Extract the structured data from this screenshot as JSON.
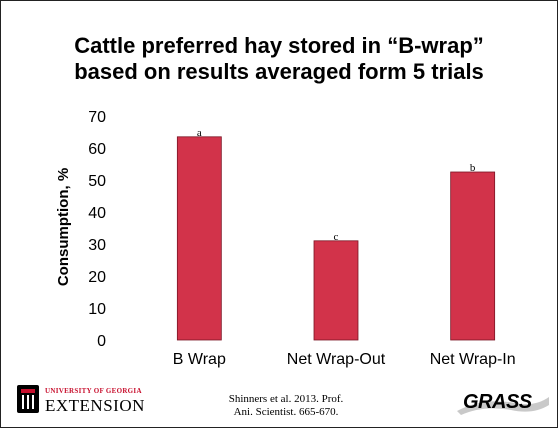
{
  "slide": {
    "title_lines": [
      "Cattle preferred hay stored in “B-wrap”",
      "based on results averaged form 5 trials"
    ],
    "citation_lines": [
      "Shinners et al. 2013. Prof.",
      "Ani. Scientist. 665-670."
    ],
    "logos": {
      "uga_university": "UNIVERSITY OF GEORGIA",
      "uga_extension": "EXTENSION",
      "grass": "GRASS"
    }
  },
  "chart_data": {
    "type": "bar",
    "title": "",
    "xlabel": "",
    "ylabel": "Consumption, %",
    "categories": [
      "B Wrap",
      "Net Wrap-Out",
      "Net Wrap-In"
    ],
    "values": [
      63.5,
      31,
      52.5
    ],
    "data_labels": [
      "a",
      "c",
      "b"
    ],
    "ylim": [
      0,
      70
    ],
    "yticks": [
      0,
      10,
      20,
      30,
      40,
      50,
      60,
      70
    ],
    "grid": false,
    "legend": "none",
    "bar_color": "#d2334a"
  }
}
